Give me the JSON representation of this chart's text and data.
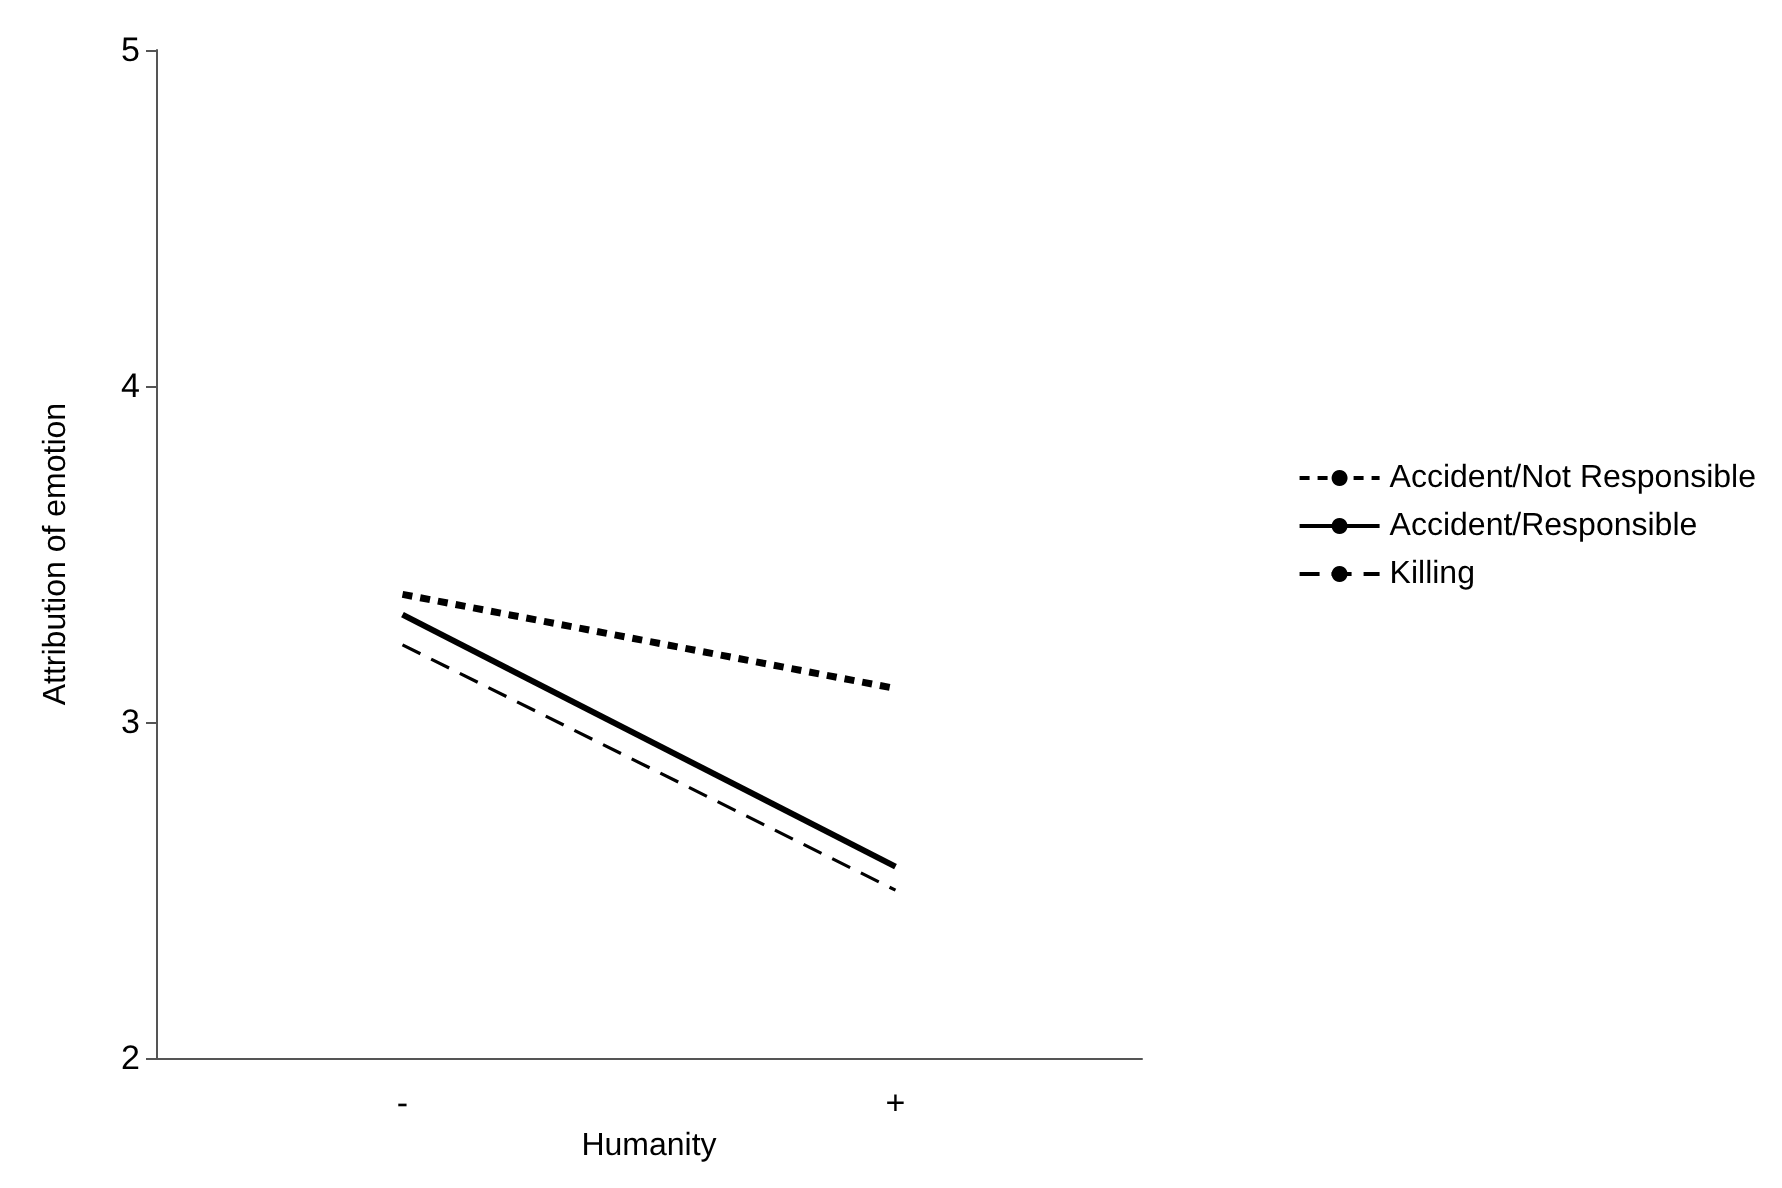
{
  "chart_data": {
    "type": "line",
    "xlabel": "Humanity",
    "ylabel": "Attribution of emotion",
    "categories": [
      "-",
      "+"
    ],
    "series": [
      {
        "name": "Accident/Not Responsible",
        "color": "#000000",
        "line_style": "dotted",
        "values": [
          3.38,
          3.1
        ]
      },
      {
        "name": "Accident/Responsible",
        "color": "#000000",
        "line_style": "solid",
        "values": [
          3.32,
          2.57
        ]
      },
      {
        "name": "Killing",
        "color": "#000000",
        "line_style": "dashed",
        "values": [
          3.23,
          2.5
        ]
      }
    ],
    "ylim": [
      2,
      5
    ],
    "yticks": [
      2,
      3,
      4,
      5
    ],
    "grid": false,
    "legend": "right",
    "marker": "none"
  }
}
